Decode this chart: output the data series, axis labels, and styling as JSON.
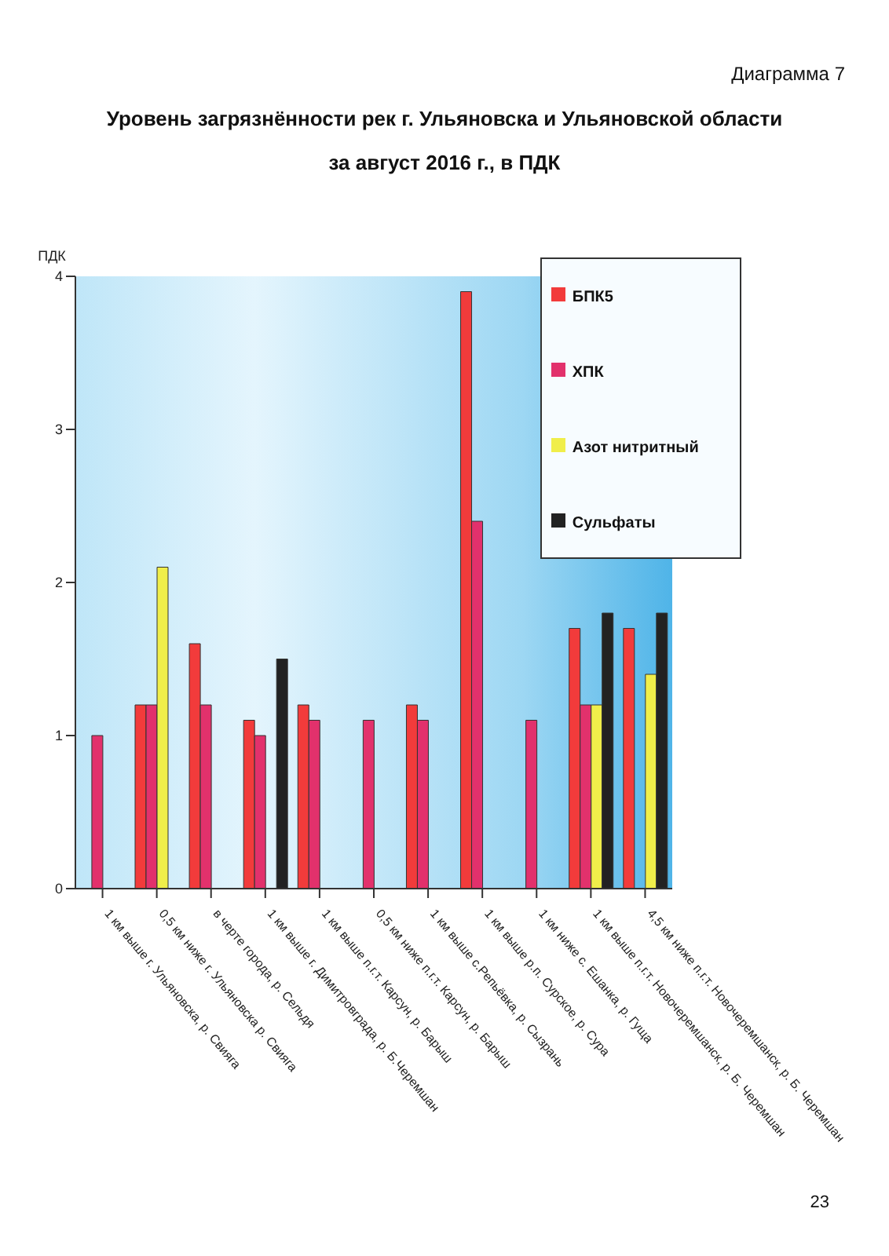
{
  "chart_data": {
    "type": "bar",
    "title": "Уровень загрязнённости рек г. Ульяновска и Ульяновской области",
    "subtitle": "за август 2016 г., в ПДК",
    "ylabel": "ПДК",
    "annotations": [
      "Диаграмма 7",
      "23"
    ],
    "categories": [
      "1 км выше г. Ульяновска, р. Свияга",
      "0,5 км ниже г. Ульяновска р. Свияга",
      "в черте города, р. Сельдя",
      "1 км выше г. Димитровграда, р. Б.Черемшан",
      "1 км выше п.г.т. Карсун, р. Барыш",
      "0,5 км ниже п.г.т. Карсун, р. Барыш",
      "1 км выше с.Репьёвка, р. Сызрань",
      "1 км выше р.п. Сурское, р. Сура",
      "1 км ниже с. Ешанка, р. Гуща",
      "1 км выше п.г.т. Новочеремшанск, р. Б. Черемшан",
      "4,5 км ниже п.г.т. Новочеремшанск, р. Б. Черемшан"
    ],
    "series": [
      {
        "name": "БПК5",
        "color": "#f23b3b",
        "values": [
          null,
          1.2,
          1.6,
          1.1,
          1.2,
          null,
          1.2,
          3.9,
          null,
          1.7,
          1.7
        ]
      },
      {
        "name": "ХПК",
        "color": "#e2316c",
        "values": [
          1.0,
          1.2,
          1.2,
          1.0,
          1.1,
          1.1,
          1.1,
          2.4,
          1.1,
          1.2,
          null
        ]
      },
      {
        "name": "Азот нитритный",
        "color": "#f0ee4a",
        "values": [
          null,
          2.1,
          null,
          null,
          null,
          null,
          null,
          null,
          null,
          1.2,
          1.4
        ]
      },
      {
        "name": "Сульфаты",
        "color": "#222222",
        "values": [
          null,
          null,
          null,
          1.5,
          null,
          null,
          null,
          null,
          null,
          1.8,
          1.8
        ]
      }
    ],
    "ylim": [
      0,
      4
    ],
    "yticks": [
      0,
      1,
      2,
      3,
      4
    ],
    "legend": "top right"
  }
}
